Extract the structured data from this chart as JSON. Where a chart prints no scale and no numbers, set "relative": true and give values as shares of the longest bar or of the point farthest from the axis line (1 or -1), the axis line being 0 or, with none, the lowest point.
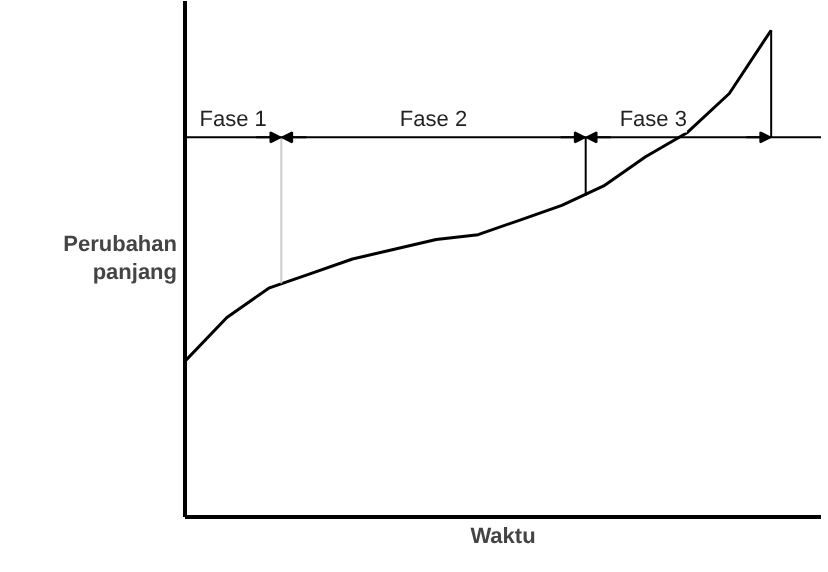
{
  "chart_data": {
    "type": "line",
    "relative": true,
    "xlabel": "Waktu",
    "ylabel": "Perubahan panjang",
    "categories": [
      null,
      null,
      null,
      null,
      null,
      null,
      null,
      null,
      null,
      null,
      null,
      null,
      null,
      null,
      null
    ],
    "series": [
      {
        "color": "#000000",
        "values": [
          0.32,
          0.41,
          0.47,
          0.5,
          0.53,
          0.55,
          0.57,
          0.58,
          0.61,
          0.64,
          0.68,
          0.74,
          0.79,
          0.87,
          1.0
        ]
      }
    ],
    "ref_lines": [
      {
        "axis": "y",
        "value": 0.78,
        "color": "#000000"
      }
    ],
    "annotations": [
      "Fase 1",
      "Fase 2",
      "Fase 3"
    ]
  }
}
